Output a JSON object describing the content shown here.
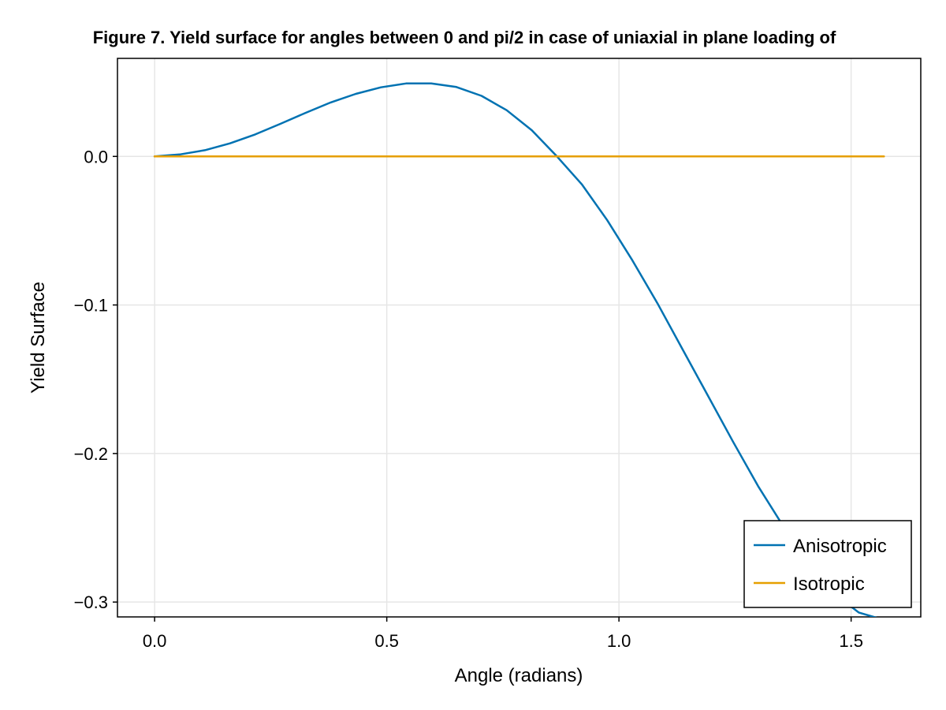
{
  "chart_data": {
    "type": "line",
    "title": "Figure 7. Yield surface for angles between 0 and pi/2 in case of uniaxial in plane loading of",
    "xlabel": "Angle (radians)",
    "ylabel": "Yield Surface",
    "xlim": [
      -0.08,
      1.65
    ],
    "ylim": [
      -0.31,
      0.066
    ],
    "xticks": [
      0.0,
      0.5,
      1.0,
      1.5
    ],
    "xtick_labels": [
      "0.0",
      "0.5",
      "1.0",
      "1.5"
    ],
    "yticks": [
      0.0,
      -0.1,
      -0.2,
      -0.3
    ],
    "ytick_labels": [
      "0.0",
      "−0.1",
      "−0.2",
      "−0.3"
    ],
    "grid": true,
    "legend_position": "bottom-right",
    "series": [
      {
        "name": "Anisotropic",
        "color": "#0072b2",
        "x": [
          0.0,
          0.0541,
          0.1083,
          0.1625,
          0.2166,
          0.2708,
          0.3249,
          0.3791,
          0.4332,
          0.4874,
          0.5416,
          0.5957,
          0.6499,
          0.704,
          0.7582,
          0.8124,
          0.8665,
          0.9207,
          0.9748,
          1.029,
          1.0831,
          1.1373,
          1.1915,
          1.2456,
          1.2998,
          1.3539,
          1.4081,
          1.4623,
          1.5164,
          1.5708
        ],
        "y": [
          0.0,
          0.0013,
          0.0042,
          0.0088,
          0.0148,
          0.0219,
          0.0293,
          0.0363,
          0.0421,
          0.0465,
          0.0491,
          0.0491,
          0.0467,
          0.0408,
          0.0311,
          0.0176,
          0.0,
          -0.019,
          -0.043,
          -0.07,
          -0.099,
          -0.13,
          -0.161,
          -0.192,
          -0.222,
          -0.249,
          -0.274,
          -0.294,
          -0.307,
          -0.312
        ]
      },
      {
        "name": "Isotropic",
        "color": "#e69f00",
        "x": [
          0.0,
          1.5708
        ],
        "y": [
          0.0,
          0.0
        ]
      }
    ]
  }
}
